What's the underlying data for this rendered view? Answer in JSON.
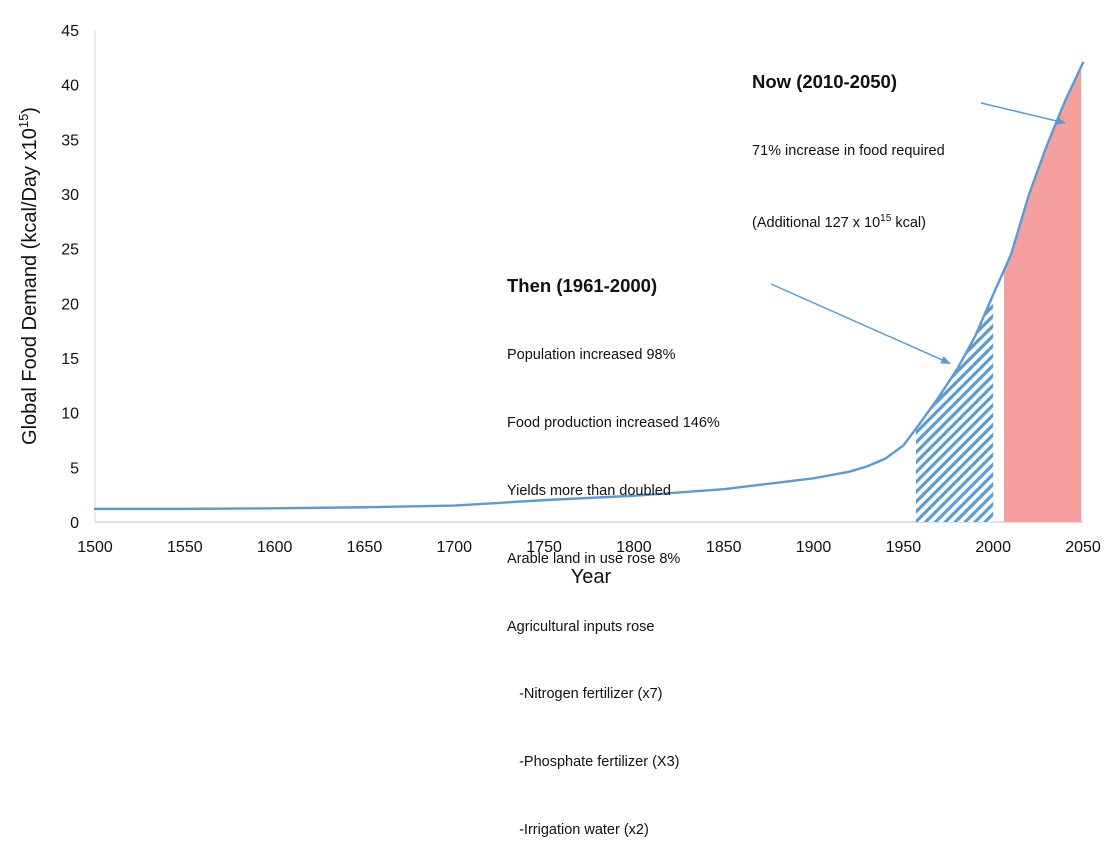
{
  "chart_data": {
    "type": "line",
    "title": "",
    "xlabel": "Year",
    "ylabel_main": "Global Food Demand (kcal/Day x10",
    "ylabel_sup": "15",
    "ylabel_close": ")",
    "xlim": [
      1500,
      2050
    ],
    "ylim": [
      0,
      45
    ],
    "x_ticks": [
      "1500",
      "1550",
      "1600",
      "1650",
      "1700",
      "1750",
      "1800",
      "1850",
      "1900",
      "1950",
      "2000",
      "2050"
    ],
    "y_ticks": [
      "0",
      "5",
      "10",
      "15",
      "20",
      "25",
      "30",
      "35",
      "40",
      "45"
    ],
    "series": [
      {
        "name": "Global Food Demand",
        "color": "#5b9bd5",
        "x": [
          1500,
          1550,
          1600,
          1650,
          1700,
          1720,
          1750,
          1800,
          1850,
          1900,
          1920,
          1930,
          1940,
          1950,
          1960,
          1970,
          1980,
          1990,
          2000,
          2010,
          2020,
          2030,
          2040,
          2050
        ],
        "y": [
          1.2,
          1.2,
          1.25,
          1.35,
          1.5,
          1.7,
          2.0,
          2.4,
          3.0,
          4.0,
          4.6,
          5.1,
          5.8,
          7.0,
          9.2,
          11.5,
          14.0,
          17.0,
          20.8,
          24.5,
          30.0,
          34.5,
          38.5,
          42.0
        ]
      }
    ],
    "shaded_regions": [
      {
        "name": "Then (1961-2000)",
        "x_start": 1957,
        "x_end": 2000,
        "fill": "hatched",
        "color": "#5b9bd5"
      },
      {
        "name": "Now (2010-2050)",
        "x_start": 2006,
        "x_end": 2049,
        "fill": "solid",
        "color": "#f4a09f"
      }
    ],
    "annotations": {
      "then": {
        "title": "Then (1961-2000)",
        "lines": [
          "Population increased 98%",
          "Food production increased 146%",
          "Yields more than doubled",
          "Arable land in use rose 8%",
          "Agricultural inputs rose",
          "   -Nitrogen fertilizer (x7)",
          "   -Phosphate fertilizer (X3)",
          "   -Irrigation water (x2)"
        ],
        "arrow_to": {
          "x": 1976,
          "y": 14.5
        }
      },
      "now": {
        "title": "Now (2010-2050)",
        "line1": "71% increase in food required",
        "line2_pre": "(Additional 127 x 10",
        "line2_sup": "15",
        "line2_post": " kcal)",
        "arrow_to": {
          "x": 2040,
          "y": 36.5
        }
      }
    }
  }
}
